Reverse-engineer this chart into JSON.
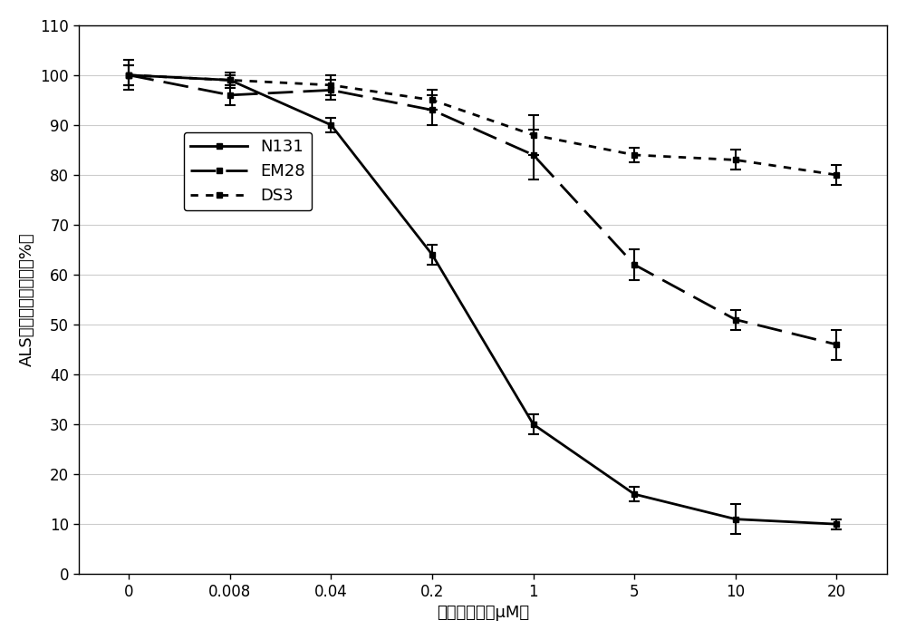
{
  "x_positions": [
    0,
    1,
    2,
    3,
    4,
    5,
    6,
    7
  ],
  "x_labels": [
    "0",
    "0.008",
    "0.04",
    "0.2",
    "1",
    "5",
    "10",
    "20"
  ],
  "N131_y": [
    100,
    99,
    90,
    64,
    30,
    16,
    11,
    10
  ],
  "N131_yerr": [
    3,
    1.5,
    1.5,
    2,
    2,
    1.5,
    3,
    1
  ],
  "EM28_y": [
    100,
    96,
    97,
    93,
    84,
    62,
    51,
    46
  ],
  "EM28_yerr": [
    2,
    2,
    2,
    3,
    5,
    3,
    2,
    3
  ],
  "DS3_y": [
    100,
    99,
    98,
    95,
    88,
    84,
    83,
    80
  ],
  "DS3_yerr": [
    2,
    1,
    2,
    2,
    4,
    1.5,
    2,
    2
  ],
  "xlabel": "苯磺陌浓度（μM）",
  "ylabel": "ALS酶活（相对于对照%）",
  "ylim": [
    0,
    110
  ],
  "yticks": [
    0,
    10,
    20,
    30,
    40,
    50,
    60,
    70,
    80,
    90,
    100,
    110
  ],
  "legend_labels": [
    "N131",
    "EM28",
    "DS3"
  ],
  "background_color": "#ffffff",
  "grid_color": "#cccccc",
  "axis_fontsize": 13,
  "legend_fontsize": 13,
  "tick_fontsize": 12
}
